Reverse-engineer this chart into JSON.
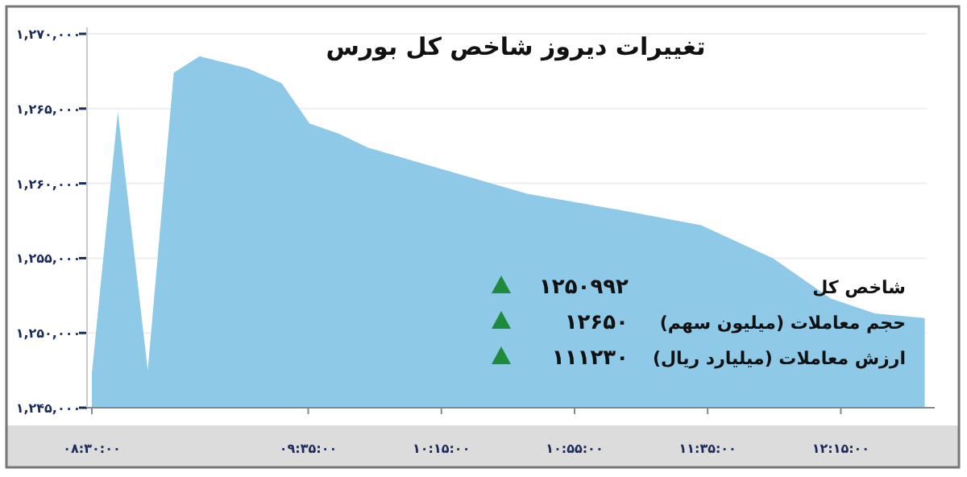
{
  "chart_data": {
    "type": "area",
    "title": "تغییرات دیروز شاخص کل بورس",
    "x": [
      8.5,
      8.63,
      8.78,
      8.91,
      9.04,
      9.28,
      9.45,
      9.59,
      9.74,
      9.88,
      10.24,
      10.68,
      11.11,
      11.55,
      11.91,
      12.2,
      12.42,
      12.67
    ],
    "values": [
      1247300,
      1264800,
      1247500,
      1267400,
      1268500,
      1267700,
      1266700,
      1264000,
      1263300,
      1262400,
      1261000,
      1259300,
      1258300,
      1257200,
      1255000,
      1252300,
      1251300,
      1251000
    ],
    "color": "#8ecae8",
    "xlim": [
      8.5,
      12.68
    ],
    "xticks": [
      {
        "value": 8.5,
        "label": "۰۸:۳۰:۰۰"
      },
      {
        "value": 9.5833,
        "label": "۰۹:۳۵:۰۰"
      },
      {
        "value": 10.25,
        "label": "۱۰:۱۵:۰۰"
      },
      {
        "value": 10.9167,
        "label": "۱۰:۵۵:۰۰"
      },
      {
        "value": 11.5833,
        "label": "۱۱:۳۵:۰۰"
      },
      {
        "value": 12.25,
        "label": "۱۲:۱۵:۰۰"
      }
    ],
    "ylim": [
      1245000,
      1270000
    ],
    "yticks": [
      {
        "value": 1245000,
        "label": "۱,۲۴۵,۰۰۰"
      },
      {
        "value": 1250000,
        "label": "۱,۲۵۰,۰۰۰"
      },
      {
        "value": 1255000,
        "label": "۱,۲۵۵,۰۰۰"
      },
      {
        "value": 1260000,
        "label": "۱,۲۶۰,۰۰۰"
      },
      {
        "value": 1265000,
        "label": "۱,۲۶۵,۰۰۰"
      },
      {
        "value": 1270000,
        "label": "۱,۲۷۰,۰۰۰"
      }
    ],
    "grid": "y",
    "annotations": [
      "شاخص کل",
      "۱۲۵۰۹۹۲",
      "حجم معاملات (میلیون سهم)",
      "۱۲۶۵۰",
      "ارزش معاملات (میلیارد ریال)",
      "۱۱۱۲۳۰"
    ]
  }
}
